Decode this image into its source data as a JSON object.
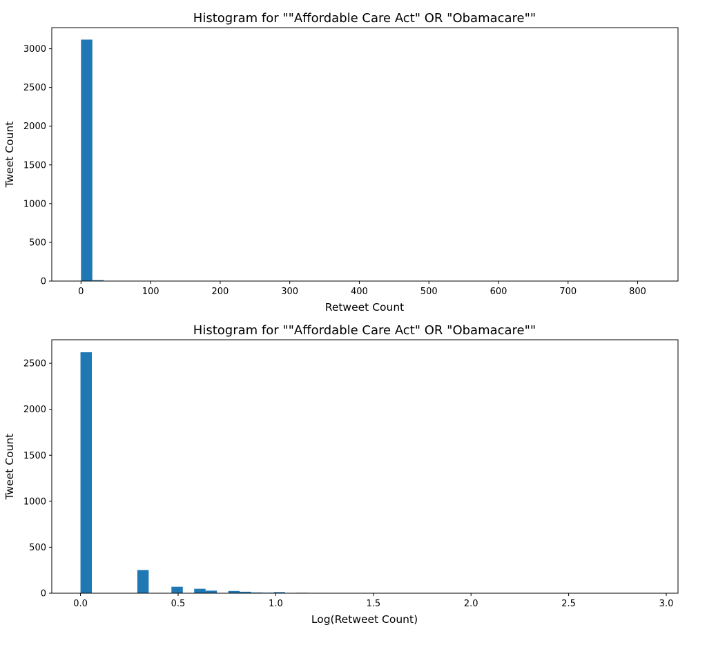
{
  "chart_data": [
    {
      "type": "bar",
      "subtype": "histogram",
      "title": "Histogram for \"\"Affordable Care Act\" OR \"Obamacare\"\"",
      "xlabel": "Retweet Count",
      "ylabel": "Tweet Count",
      "xlim": [
        -42,
        858
      ],
      "ylim": [
        0,
        3273
      ],
      "xticks": [
        0,
        100,
        200,
        300,
        400,
        500,
        600,
        700,
        800
      ],
      "yticks": [
        0,
        500,
        1000,
        1500,
        2000,
        2500,
        3000
      ],
      "bin_width": 16.3,
      "bins": [
        {
          "x0": 0,
          "x1": 16.3,
          "count": 3118
        },
        {
          "x0": 16.3,
          "x1": 32.6,
          "count": 12
        },
        {
          "x0": 32.6,
          "x1": 48.9,
          "count": 4
        },
        {
          "x0": 48.9,
          "x1": 65.2,
          "count": 2
        },
        {
          "x0": 65.2,
          "x1": 81.5,
          "count": 1
        },
        {
          "x0": 97.8,
          "x1": 114.1,
          "count": 1
        },
        {
          "x0": 130.4,
          "x1": 146.7,
          "count": 1
        },
        {
          "x0": 195.6,
          "x1": 211.9,
          "count": 1
        },
        {
          "x0": 799.4,
          "x1": 815.7,
          "count": 1
        }
      ],
      "color": "#1f77b4"
    },
    {
      "type": "bar",
      "subtype": "histogram",
      "title": "Histogram for \"\"Affordable Care Act\" OR \"Obamacare\"\"",
      "xlabel": "Log(Retweet Count)",
      "ylabel": "Tweet Count",
      "xlim": [
        -0.147,
        3.06
      ],
      "ylim": [
        0,
        2756
      ],
      "xticks": [
        0.0,
        0.5,
        1.0,
        1.5,
        2.0,
        2.5,
        3.0
      ],
      "yticks": [
        0,
        500,
        1000,
        1500,
        2000,
        2500
      ],
      "bin_width": 0.0582,
      "bins": [
        {
          "x0": 0.0,
          "x1": 0.0582,
          "count": 2620
        },
        {
          "x0": 0.2911,
          "x1": 0.3493,
          "count": 252
        },
        {
          "x0": 0.4658,
          "x1": 0.524,
          "count": 70
        },
        {
          "x0": 0.5822,
          "x1": 0.6405,
          "count": 48
        },
        {
          "x0": 0.6405,
          "x1": 0.6987,
          "count": 28
        },
        {
          "x0": 0.7569,
          "x1": 0.8151,
          "count": 24
        },
        {
          "x0": 0.8151,
          "x1": 0.8734,
          "count": 16
        },
        {
          "x0": 0.8734,
          "x1": 0.9316,
          "count": 8
        },
        {
          "x0": 0.9316,
          "x1": 0.9898,
          "count": 6
        },
        {
          "x0": 0.9898,
          "x1": 1.048,
          "count": 12
        },
        {
          "x0": 1.1063,
          "x1": 1.1645,
          "count": 5
        },
        {
          "x0": 1.1645,
          "x1": 1.2227,
          "count": 4
        },
        {
          "x0": 1.2227,
          "x1": 1.2809,
          "count": 4
        },
        {
          "x0": 1.3391,
          "x1": 1.3974,
          "count": 3
        },
        {
          "x0": 1.3974,
          "x1": 1.4556,
          "count": 3
        },
        {
          "x0": 1.5138,
          "x1": 1.572,
          "count": 3
        },
        {
          "x0": 1.572,
          "x1": 1.6303,
          "count": 2
        },
        {
          "x0": 1.6885,
          "x1": 1.7467,
          "count": 2
        },
        {
          "x0": 1.7467,
          "x1": 1.8049,
          "count": 2
        },
        {
          "x0": 1.8632,
          "x1": 1.9214,
          "count": 2
        },
        {
          "x0": 2.0378,
          "x1": 2.0961,
          "count": 2
        },
        {
          "x0": 2.8529,
          "x1": 2.9111,
          "count": 1
        }
      ],
      "color": "#1f77b4"
    }
  ]
}
